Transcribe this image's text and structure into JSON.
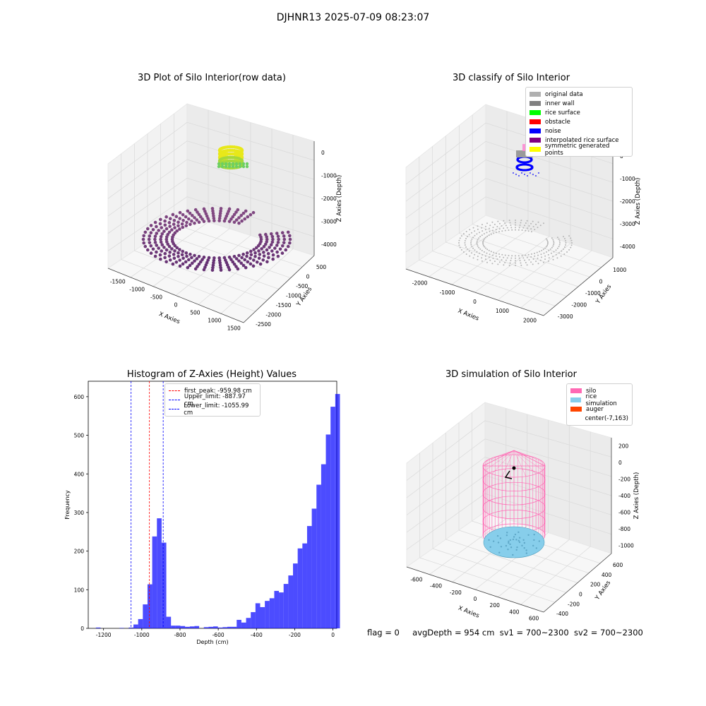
{
  "suptitle": "DJHNR13 2025-07-09 08:23:07",
  "panels": {
    "raw": {
      "title": "3D Plot of Silo Interior(row data)",
      "xlabel": "X Axies",
      "ylabel": "Y Axies",
      "zlabel": "Z Axies (Depth)",
      "xticks": [
        "-1500",
        "-1000",
        "-500",
        "0",
        "500",
        "1000",
        "1500"
      ],
      "yticks": [
        "500",
        "0",
        "-500",
        "-1000",
        "-1500",
        "-2000",
        "-2500"
      ],
      "zticks": [
        "0",
        "-1000",
        "-2000",
        "-3000",
        "-4000"
      ]
    },
    "classify": {
      "title": "3D classify of Silo Interior",
      "xlabel": "X Axies",
      "ylabel": "Y Axies",
      "zlabel": "Z Axies (Depth)",
      "xticks": [
        "-2000",
        "-1000",
        "0",
        "1000",
        "2000"
      ],
      "yticks": [
        "1000",
        "0",
        "-1000",
        "-2000",
        "-3000"
      ],
      "zticks": [
        "0",
        "-1000",
        "-2000",
        "-3000",
        "-4000"
      ],
      "legend": [
        {
          "label": "original data",
          "color": "#b0b0b0"
        },
        {
          "label": "inner wall",
          "color": "#808080"
        },
        {
          "label": "rice surface",
          "color": "#00ff00"
        },
        {
          "label": "obstacle",
          "color": "#ff0000"
        },
        {
          "label": "noise",
          "color": "#0000ff"
        },
        {
          "label": "interpolated rice surface",
          "color": "#800080"
        },
        {
          "label": "symmetric generated points",
          "color": "#ffff00"
        }
      ]
    },
    "simulation": {
      "title": "3D simulation of Silo Interior",
      "xlabel": "X Axies",
      "ylabel": "Y Axies",
      "zlabel": "Z Axies (Depth)",
      "xticks": [
        "-600",
        "-400",
        "-200",
        "0",
        "200",
        "400",
        "600"
      ],
      "yticks": [
        "600",
        "400",
        "200",
        "0",
        "-200",
        "-400"
      ],
      "zticks": [
        "200",
        "0",
        "-200",
        "-400",
        "-600",
        "-800",
        "-1000"
      ],
      "legend": [
        {
          "label": "silo",
          "color": "#ff69b4"
        },
        {
          "label": "rice simulation",
          "color": "#87ceeb"
        },
        {
          "label": "auger",
          "color": "#ff4500"
        },
        {
          "label": "center(-7,163)",
          "color": "#ffffff"
        }
      ]
    }
  },
  "footer": {
    "flag": "flag = 0",
    "avg": "avgDepth = 954 cm",
    "sv1": "sv1 = 700~2300",
    "sv2": "sv2 = 700~2300"
  },
  "chart_data": [
    {
      "type": "bar",
      "title": "Histogram of Z-Axies (Height) Values",
      "xlabel": "Depth (cm)",
      "ylabel": "Frequency",
      "xlim": [
        -1280,
        20
      ],
      "ylim": [
        0,
        640
      ],
      "xticks": [
        -1200,
        -1000,
        -800,
        -600,
        -400,
        -200,
        0
      ],
      "yticks": [
        0,
        100,
        200,
        300,
        400,
        500,
        600
      ],
      "bar_color": "#0000ff",
      "bin_width": 24.55,
      "bin_edges_start": -1240,
      "values": [
        2,
        0,
        0,
        0,
        0,
        1,
        0,
        2,
        10,
        24,
        62,
        114,
        238,
        285,
        222,
        30,
        7,
        7,
        6,
        4,
        5,
        6,
        0,
        3,
        4,
        5,
        2,
        3,
        4,
        4,
        22,
        15,
        27,
        42,
        65,
        55,
        71,
        78,
        97,
        93,
        115,
        137,
        168,
        207,
        220,
        265,
        310,
        372,
        425,
        502,
        574,
        607
      ],
      "lines": [
        {
          "label": "first_peak: -959.98 cm",
          "x": -959.98,
          "color": "#ff0000"
        },
        {
          "label": "Upper_limit: -887.97 cm",
          "x": -887.97,
          "color": "#0000ff"
        },
        {
          "label": "Lower_limit: -1055.99 cm",
          "x": -1055.99,
          "color": "#0000ff"
        }
      ]
    }
  ]
}
